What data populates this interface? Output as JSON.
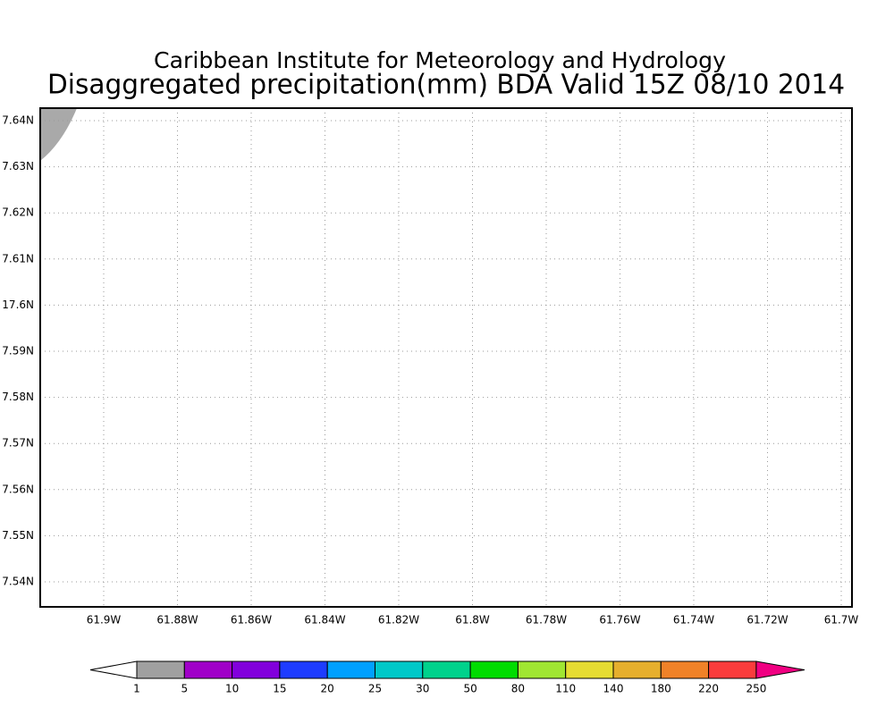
{
  "header": {
    "title": "Caribbean Institute for Meteorology and Hydrology",
    "subtitle": "Disaggregated precipitation(mm) BDA Valid 15Z 08/10 2014"
  },
  "map": {
    "lat_labels": [
      "7.64N",
      "7.63N",
      "7.62N",
      "7.61N",
      "17.6N",
      "7.59N",
      "7.58N",
      "7.57N",
      "7.56N",
      "7.55N",
      "7.54N"
    ],
    "lon_labels": [
      "61.9W",
      "61.88W",
      "61.86W",
      "61.84W",
      "61.82W",
      "61.8W",
      "61.78W",
      "61.76W",
      "61.74W",
      "61.72W",
      "61.7W"
    ]
  },
  "colorbar": {
    "levels": [
      1,
      5,
      10,
      15,
      20,
      25,
      30,
      50,
      80,
      110,
      140,
      180,
      220,
      250
    ],
    "colors": [
      "#ffffff",
      "#a0a0a0",
      "#a000c8",
      "#8200dc",
      "#1e3cff",
      "#00a0ff",
      "#00c8c8",
      "#00d28c",
      "#00dc00",
      "#a0e632",
      "#e6dc32",
      "#e6af2d",
      "#f08228",
      "#fa3c3c",
      "#f00082"
    ]
  }
}
